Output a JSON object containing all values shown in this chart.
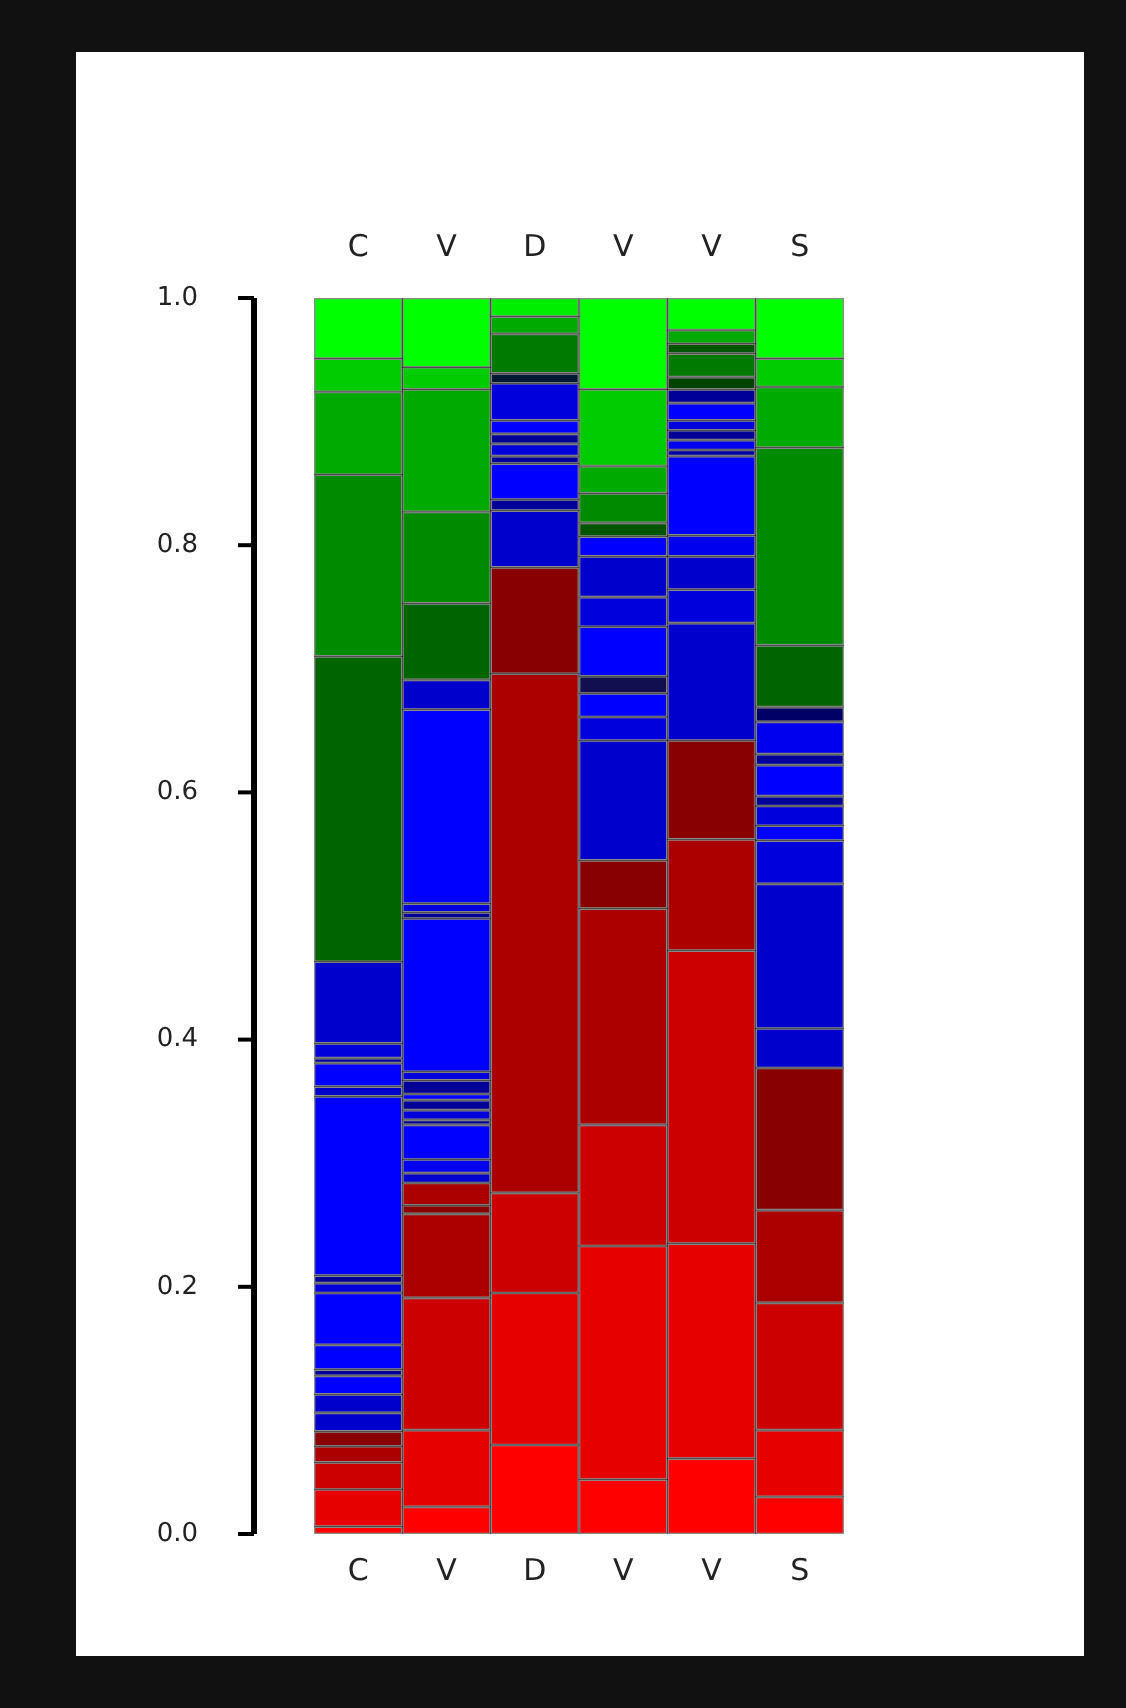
{
  "chart_data": {
    "type": "bar",
    "stacked": true,
    "categories": [
      "C",
      "V",
      "D",
      "V",
      "V",
      "S"
    ],
    "ylim": [
      0,
      1
    ],
    "yticks": [
      {
        "value": 0,
        "label": "0.0"
      },
      {
        "value": 0.2,
        "label": "0.2"
      },
      {
        "value": 0.4,
        "label": "0.4"
      },
      {
        "value": 0.6,
        "label": "0.6"
      },
      {
        "value": 0.8,
        "label": "0.8"
      },
      {
        "value": 1,
        "label": "1.0"
      }
    ],
    "series": [
      {
        "values": [
          0.006,
          0.022,
          0.072,
          0.044,
          0.061,
          0.03
        ],
        "colors": [
          "#ff0000",
          "#ff0000",
          "#ff0000",
          "#ff0000",
          "#ff0000",
          "#ff0000"
        ]
      },
      {
        "values": [
          0.03,
          0.062,
          0.123,
          0.189,
          0.174,
          0.054
        ],
        "colors": [
          "#e60000",
          "#e60000",
          "#e60000",
          "#e60000",
          "#e60000",
          "#e60000"
        ]
      },
      {
        "values": [
          0.022,
          0.107,
          0.081,
          0.098,
          0.237,
          0.103
        ],
        "colors": [
          "#cc0000",
          "#cc0000",
          "#cc0000",
          "#cc0000",
          "#cc0000",
          "#cc0000"
        ]
      },
      {
        "values": [
          0.013,
          0.068,
          0.42,
          0.175,
          0.09,
          0.075
        ],
        "colors": [
          "#aa0000",
          "#aa0000",
          "#aa0000",
          "#aa0000",
          "#aa0000",
          "#aa0000"
        ]
      },
      {
        "values": [
          0.012,
          0.007,
          0.086,
          0.039,
          0.08,
          0.115
        ],
        "colors": [
          "#880000",
          "#880000",
          "#880000",
          "#880000",
          "#880000",
          "#880000"
        ]
      },
      {
        "values": [
          0.015,
          0.018,
          0.046,
          0.097,
          0.095,
          0.032
        ],
        "colors": [
          "#0000cc",
          "#aa0000",
          "#0000cc",
          "#0000cc",
          "#0000cc",
          "#0000cc"
        ]
      },
      {
        "values": [
          0.015,
          0.008,
          0.009,
          0.019,
          0.027,
          0.117
        ],
        "colors": [
          "#0000cc",
          "#0000cc",
          "#000099",
          "#0000dd",
          "#0000dd",
          "#0000cc"
        ]
      },
      {
        "values": [
          0.015,
          0.011,
          0.029,
          0.019,
          0.027,
          0.035
        ],
        "colors": [
          "#0000ff",
          "#0000ee",
          "#0000ff",
          "#0000ff",
          "#0000cc",
          "#0000dd"
        ]
      },
      {
        "values": [
          0.005,
          0.028,
          0.006,
          0.014,
          0.017,
          0.012
        ],
        "colors": [
          "#000099",
          "#0000ff",
          "#000099",
          "#101050",
          "#0000ee",
          "#0000ff"
        ]
      },
      {
        "values": [
          0.02,
          0.004,
          0.01,
          0.04,
          0.064,
          0.016
        ],
        "colors": [
          "#0000ff",
          "#000099",
          "#0000dd",
          "#0000ff",
          "#0000ff",
          "#0000dd"
        ]
      },
      {
        "values": [
          0.042,
          0.008,
          0.008,
          0.024,
          0.005,
          0.008
        ],
        "colors": [
          "#0000ff",
          "#0000dd",
          "#000099",
          "#0000dd",
          "#0000aa",
          "#000099"
        ]
      },
      {
        "values": [
          0.008,
          0.008,
          0.011,
          0.033,
          0.008,
          0.025
        ],
        "colors": [
          "#0000dd",
          "#000099",
          "#0000ff",
          "#0000cc",
          "#0000ee",
          "#0000ff"
        ]
      },
      {
        "values": [
          0.006,
          0.005,
          0.03,
          0.016,
          0.008,
          0.009
        ],
        "colors": [
          "#000099",
          "#0000ff",
          "#0000dd",
          "#0000ff",
          "#000099",
          "#000099"
        ]
      },
      {
        "values": [
          0.145,
          0.011,
          0.008,
          0.011,
          0.008,
          0.026
        ],
        "colors": [
          "#0000ff",
          "#000099",
          "#001a33",
          "#005500",
          "#0000dd",
          "#0000ee"
        ]
      },
      {
        "values": [
          0.008,
          0.007,
          0.032,
          0.024,
          0.014,
          0.012
        ],
        "colors": [
          "#0000cc",
          "#0000dd",
          "#007a00",
          "#008a00",
          "#0000ff",
          "#000066"
        ]
      },
      {
        "values": [
          0.019,
          0.124,
          0.014,
          0.022,
          0.011,
          0.05
        ],
        "colors": [
          "#0000ff",
          "#0000ff",
          "#00aa00",
          "#00aa00",
          "#000099",
          "#006400"
        ]
      },
      {
        "values": [
          0.004,
          0.005,
          0.015,
          0.062,
          0.01,
          0.16
        ],
        "colors": [
          "#000099",
          "#000099",
          "#00ee00",
          "#00cc00",
          "#004400",
          "#008a00"
        ]
      },
      {
        "values": [
          0.012,
          0.007,
          null,
          0.074,
          0.019,
          0.049
        ],
        "colors": [
          "#0000dd",
          "#0000dd",
          null,
          "#00ff00",
          "#007a00",
          "#00aa00"
        ]
      },
      {
        "values": [
          0.066,
          0.157,
          null,
          null,
          0.008,
          0.023
        ],
        "colors": [
          "#0000cc",
          "#0000ff",
          null,
          null,
          "#005500",
          "#00cc00"
        ]
      },
      {
        "values": [
          0.247,
          0.024,
          null,
          null,
          0.011,
          0.049
        ],
        "colors": [
          "#006400",
          "#0000cc",
          null,
          null,
          "#00aa00",
          "#00ff00"
        ]
      },
      {
        "values": [
          0.147,
          0.062,
          null,
          null,
          0.026,
          null
        ],
        "colors": [
          "#008a00",
          "#006400",
          null,
          null,
          "#00ff00",
          null
        ]
      },
      {
        "values": [
          0.067,
          0.074,
          null,
          null,
          null,
          null
        ],
        "colors": [
          "#00aa00",
          "#008a00",
          null,
          null,
          null,
          null
        ]
      },
      {
        "values": [
          0.027,
          0.099,
          null,
          null,
          null,
          null
        ],
        "colors": [
          "#00cc00",
          "#00aa00",
          null,
          null,
          null,
          null
        ]
      },
      {
        "values": [
          0.049,
          0.018,
          null,
          null,
          null,
          null
        ],
        "colors": [
          "#00ff00",
          "#00cc00",
          null,
          null,
          null,
          null
        ]
      },
      {
        "values": [
          null,
          0.056,
          null,
          null,
          null,
          null
        ],
        "colors": [
          null,
          "#00ff00",
          null,
          null,
          null,
          null
        ]
      }
    ]
  }
}
